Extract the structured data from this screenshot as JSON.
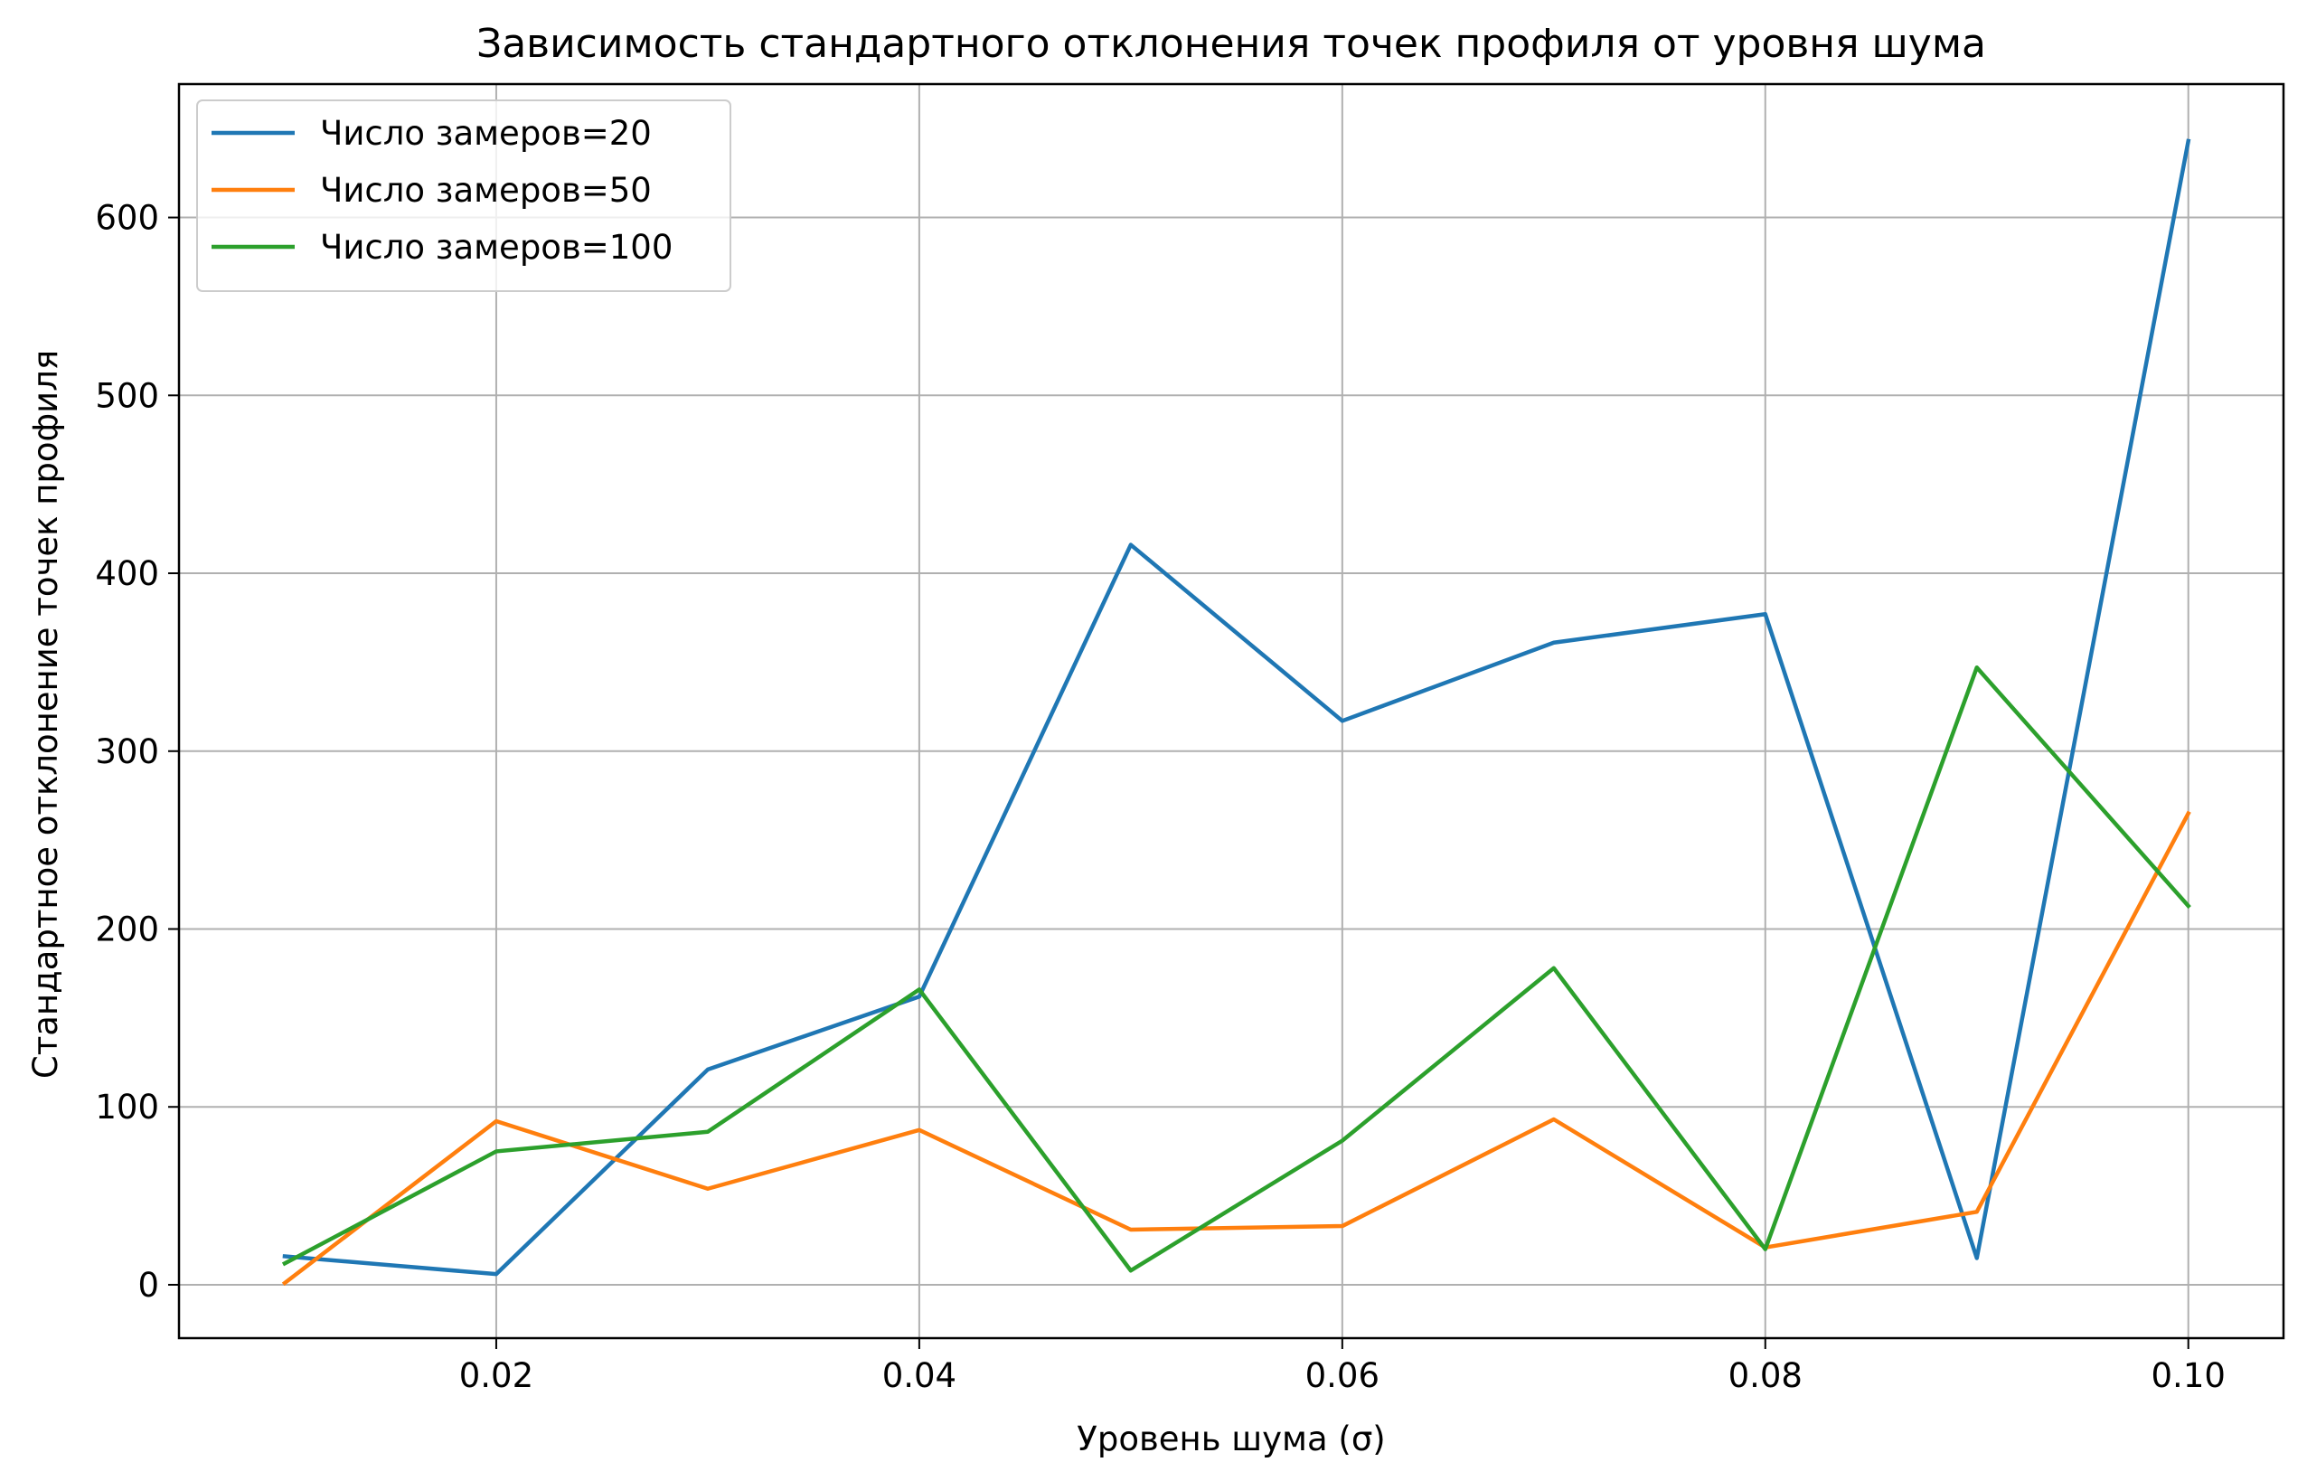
{
  "chart_data": {
    "type": "line",
    "title": "Зависимость стандартного отклонения точек профиля от уровня шума",
    "xlabel": "Уровень шума (σ)",
    "ylabel": "Стандартное отклонение точек профиля",
    "x": [
      0.01,
      0.02,
      0.03,
      0.04,
      0.05,
      0.06,
      0.07,
      0.08,
      0.09,
      0.1
    ],
    "xlim": [
      0.005,
      0.1045
    ],
    "ylim": [
      -30,
      675
    ],
    "xticks": [
      0.02,
      0.04,
      0.06,
      0.08,
      0.1
    ],
    "xtick_labels": [
      "0.02",
      "0.04",
      "0.06",
      "0.08",
      "0.10"
    ],
    "yticks": [
      0,
      100,
      200,
      300,
      400,
      500,
      600
    ],
    "ytick_labels": [
      "0",
      "100",
      "200",
      "300",
      "400",
      "500",
      "600"
    ],
    "grid": true,
    "legend_position": "top-left",
    "series": [
      {
        "name": "Число замеров=20",
        "color": "#1f77b4",
        "values": [
          16,
          6,
          121,
          162,
          416,
          317,
          361,
          377,
          15,
          643
        ]
      },
      {
        "name": "Число замеров=50",
        "color": "#ff7f0e",
        "values": [
          1,
          92,
          54,
          87,
          31,
          33,
          93,
          21,
          41,
          265
        ]
      },
      {
        "name": "Число замеров=100",
        "color": "#2ca02c",
        "values": [
          12,
          75,
          86,
          166,
          8,
          81,
          178,
          20,
          347,
          213
        ]
      }
    ]
  }
}
